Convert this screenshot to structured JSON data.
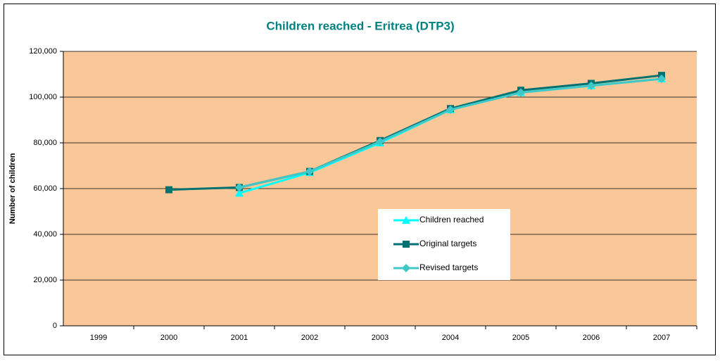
{
  "chart_data": {
    "type": "line",
    "title": "Children reached - Eritrea (DTP3)",
    "y_label": "Number of children",
    "categories": [
      "1999",
      "2000",
      "2001",
      "2002",
      "2003",
      "2004",
      "2005",
      "2006",
      "2007"
    ],
    "series": [
      {
        "name": "Children reached",
        "color": "#00ffff",
        "marker": "triangle",
        "values": [
          null,
          null,
          58000,
          67000,
          80000,
          94500,
          102000,
          105000,
          108000
        ]
      },
      {
        "name": "Original targets",
        "color": "#007070",
        "marker": "square",
        "values": [
          null,
          59500,
          60500,
          67500,
          81000,
          95000,
          103000,
          106000,
          109500
        ]
      },
      {
        "name": "Revised targets",
        "color": "#40c8c8",
        "marker": "diamond",
        "values": [
          null,
          null,
          60500,
          67500,
          80500,
          94500,
          102000,
          105000,
          108000
        ]
      }
    ],
    "ylim": [
      0,
      120000
    ],
    "yticks": [
      0,
      {
        "value": 20000,
        "label": "20,000"
      },
      {
        "value": 40000,
        "label": "40,000"
      },
      {
        "value": 60000,
        "label": "60,000"
      },
      {
        "value": 80000,
        "label": "80,000"
      },
      {
        "value": 100000,
        "label": "100,000"
      },
      {
        "value": 120000,
        "label": "120,000"
      }
    ],
    "grid": true,
    "legend": "center",
    "plot_background": "#fac898"
  }
}
